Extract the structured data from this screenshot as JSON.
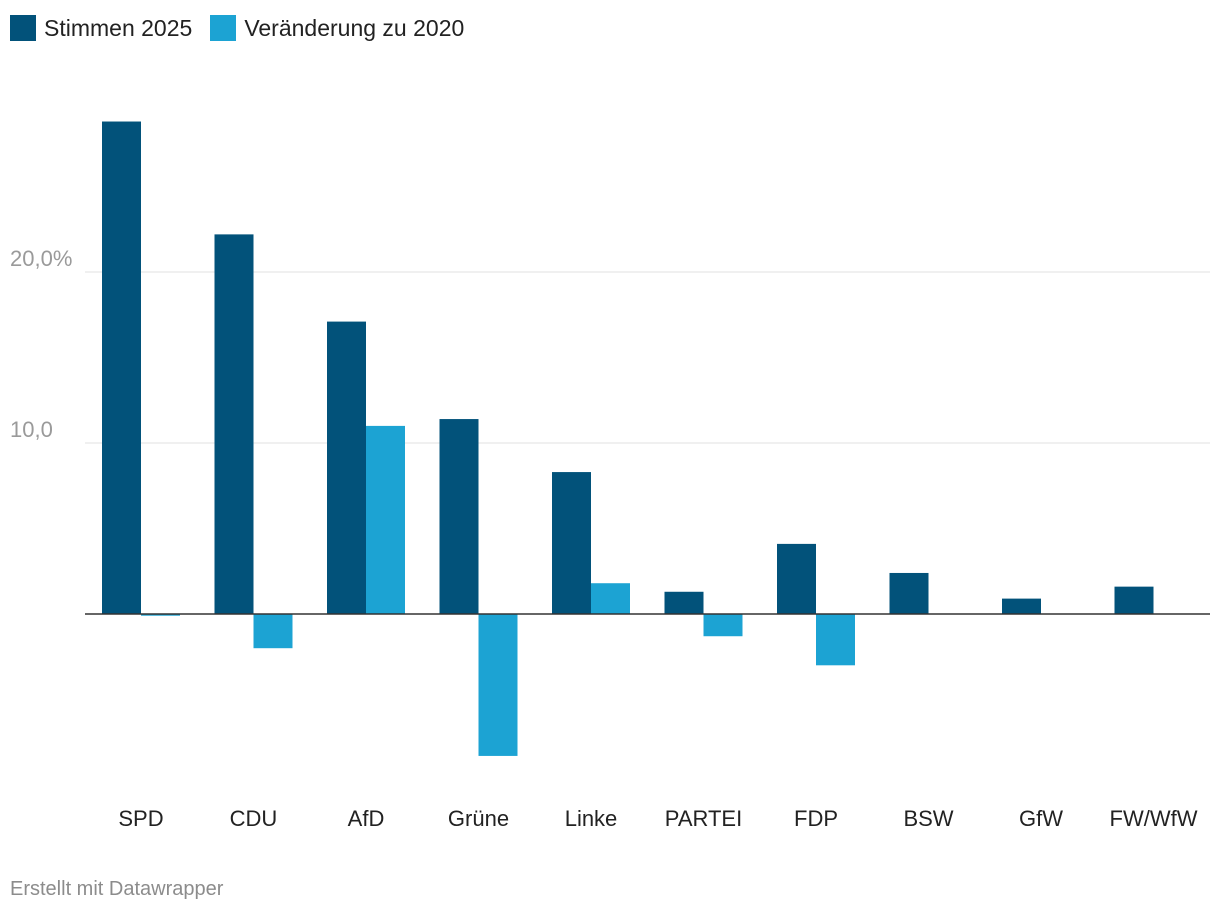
{
  "chart_data": {
    "type": "bar",
    "categories": [
      "SPD",
      "CDU",
      "AfD",
      "Grüne",
      "Linke",
      "PARTEI",
      "FDP",
      "BSW",
      "GfW",
      "FW/WfW"
    ],
    "series": [
      {
        "name": "Stimmen 2025",
        "color": "#02527a",
        "values": [
          28.8,
          22.2,
          17.1,
          11.4,
          8.3,
          1.3,
          4.1,
          2.4,
          0.9,
          1.6
        ]
      },
      {
        "name": "Veränderung zu 2020",
        "color": "#1ca3d3",
        "values": [
          -0.1,
          -2.0,
          11.0,
          -8.3,
          1.8,
          -1.3,
          -3.0,
          null,
          null,
          null
        ]
      }
    ],
    "yticks": [
      {
        "value": 20,
        "label": "20,0%"
      },
      {
        "value": 10,
        "label": "10,0"
      }
    ],
    "ylim": [
      -10,
      31
    ],
    "legend_position": "top-left",
    "grid": true
  },
  "footer": {
    "credit": "Erstellt mit Datawrapper"
  }
}
